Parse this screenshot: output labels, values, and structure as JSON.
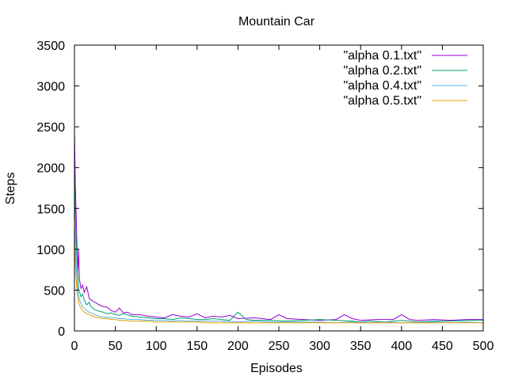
{
  "chart_data": {
    "type": "line",
    "title": "Mountain Car",
    "xlabel": "Episodes",
    "ylabel": "Steps",
    "xlim": [
      0,
      500
    ],
    "ylim": [
      0,
      3500
    ],
    "xticks": [
      0,
      50,
      100,
      150,
      200,
      250,
      300,
      350,
      400,
      450,
      500
    ],
    "yticks": [
      0,
      500,
      1000,
      1500,
      2000,
      2500,
      3000,
      3500
    ],
    "grid": false,
    "legend_position": "top-right",
    "series": [
      {
        "name": "\"alpha 0.1.txt\"",
        "color": "#9400d3",
        "x": [
          0,
          1,
          2,
          3,
          4,
          5,
          6,
          7,
          8,
          10,
          12,
          15,
          18,
          20,
          25,
          30,
          35,
          40,
          45,
          50,
          55,
          60,
          65,
          70,
          80,
          90,
          100,
          110,
          120,
          130,
          140,
          150,
          160,
          170,
          180,
          190,
          200,
          220,
          240,
          250,
          260,
          280,
          300,
          320,
          330,
          340,
          350,
          370,
          390,
          400,
          410,
          420,
          440,
          460,
          480,
          500
        ],
        "y": [
          2450,
          1820,
          1480,
          1050,
          700,
          1000,
          640,
          580,
          520,
          560,
          470,
          540,
          400,
          380,
          350,
          320,
          300,
          290,
          250,
          230,
          280,
          220,
          230,
          200,
          200,
          180,
          170,
          160,
          200,
          180,
          170,
          210,
          160,
          180,
          170,
          190,
          150,
          160,
          140,
          200,
          150,
          140,
          130,
          140,
          200,
          150,
          130,
          140,
          140,
          200,
          140,
          130,
          140,
          130,
          140,
          140
        ]
      },
      {
        "name": "\"alpha 0.2.txt\"",
        "color": "#009e73",
        "x": [
          0,
          1,
          2,
          3,
          4,
          5,
          6,
          8,
          10,
          12,
          15,
          18,
          20,
          25,
          30,
          35,
          40,
          45,
          50,
          55,
          60,
          70,
          80,
          90,
          100,
          110,
          120,
          130,
          140,
          150,
          160,
          170,
          180,
          190,
          200,
          210,
          220,
          240,
          260,
          280,
          300,
          320,
          340,
          350,
          360,
          380,
          400,
          420,
          440,
          460,
          480,
          500
        ],
        "y": [
          1900,
          1450,
          1100,
          900,
          700,
          520,
          480,
          420,
          450,
          380,
          320,
          350,
          300,
          260,
          240,
          230,
          210,
          220,
          200,
          190,
          210,
          180,
          170,
          160,
          150,
          150,
          140,
          160,
          150,
          140,
          140,
          150,
          140,
          130,
          230,
          140,
          130,
          130,
          120,
          130,
          140,
          130,
          120,
          110,
          120,
          110,
          130,
          110,
          120,
          120,
          130,
          130
        ]
      },
      {
        "name": "\"alpha 0.4.txt\"",
        "color": "#56b4e9",
        "x": [
          0,
          1,
          2,
          3,
          4,
          5,
          6,
          8,
          10,
          12,
          15,
          18,
          20,
          25,
          30,
          35,
          40,
          45,
          50,
          55,
          60,
          70,
          80,
          90,
          100,
          110,
          120,
          130,
          140,
          150,
          160,
          180,
          200,
          220,
          240,
          260,
          280,
          300,
          320,
          340,
          360,
          380,
          400,
          420,
          440,
          460,
          480,
          500
        ],
        "y": [
          1300,
          1050,
          800,
          620,
          500,
          430,
          380,
          340,
          300,
          280,
          250,
          230,
          220,
          200,
          180,
          170,
          170,
          160,
          160,
          150,
          150,
          140,
          140,
          130,
          130,
          130,
          120,
          130,
          120,
          120,
          120,
          120,
          110,
          120,
          110,
          110,
          110,
          110,
          100,
          110,
          100,
          110,
          100,
          100,
          110,
          100,
          110,
          100
        ]
      },
      {
        "name": "\"alpha 0.5.txt\"",
        "color": "#e69f00",
        "x": [
          0,
          1,
          2,
          3,
          4,
          5,
          6,
          8,
          10,
          12,
          15,
          18,
          20,
          25,
          30,
          35,
          40,
          45,
          50,
          55,
          60,
          70,
          80,
          90,
          100,
          110,
          120,
          130,
          140,
          150,
          160,
          180,
          200,
          220,
          240,
          260,
          280,
          300,
          320,
          340,
          360,
          380,
          400,
          420,
          440,
          460,
          480,
          500
        ],
        "y": [
          1100,
          850,
          650,
          500,
          420,
          360,
          320,
          280,
          250,
          230,
          210,
          200,
          190,
          170,
          160,
          150,
          150,
          140,
          140,
          130,
          130,
          120,
          120,
          120,
          110,
          110,
          110,
          110,
          110,
          110,
          100,
          100,
          100,
          100,
          100,
          100,
          100,
          100,
          100,
          100,
          100,
          100,
          100,
          100,
          100,
          100,
          100,
          100
        ]
      }
    ]
  }
}
